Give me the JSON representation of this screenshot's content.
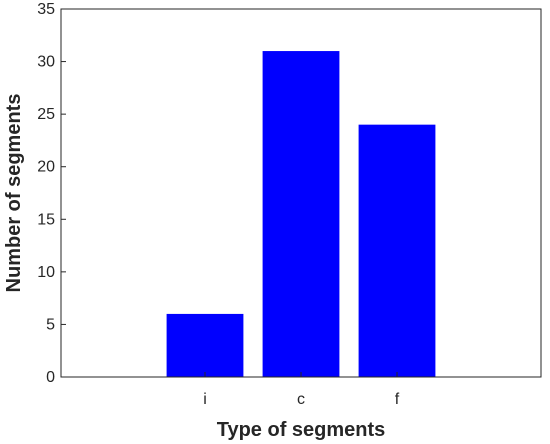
{
  "chart_data": {
    "type": "bar",
    "title": "",
    "xlabel": "Type of segments",
    "ylabel": "Number of segments",
    "categories": [
      "i",
      "c",
      "f"
    ],
    "values": [
      6,
      31,
      24
    ],
    "ylim": [
      0,
      35
    ],
    "yticks": [
      0,
      5,
      10,
      15,
      20,
      25,
      30,
      35
    ],
    "bar_color": "#0000ff",
    "grid": false,
    "legend": "none"
  }
}
